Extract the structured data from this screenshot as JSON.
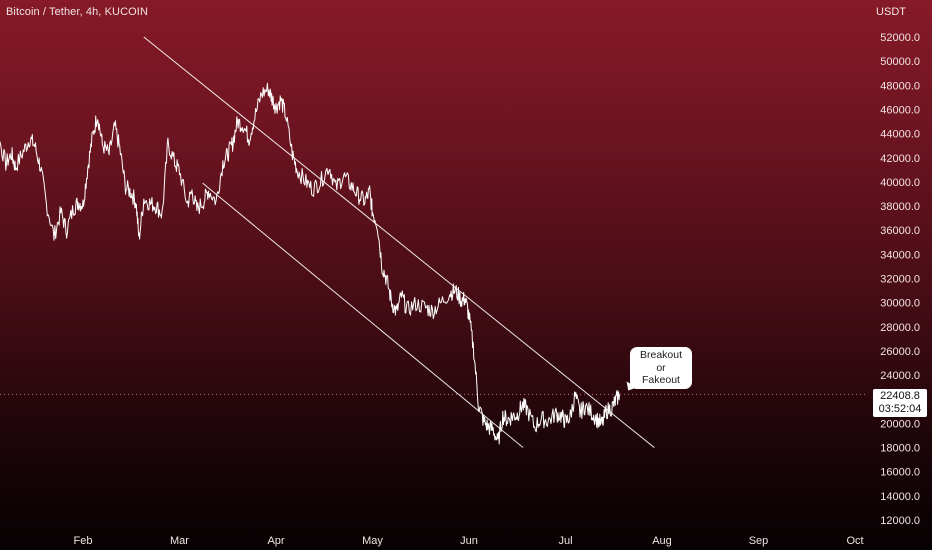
{
  "header": {
    "symbol": "Bitcoin / Tether, 4h, KUCOIN",
    "currency": "USDT"
  },
  "price_tag": {
    "last_price": "22408.8",
    "countdown": "03:52:04"
  },
  "annotation": {
    "line1": "Breakout",
    "line2": "or",
    "line3": "Fakeout"
  },
  "colors": {
    "background_top": "#861a27",
    "background_bottom": "#060102",
    "price_line": "#ffffff",
    "tag_bg": "#ffffff"
  },
  "chart_data": {
    "type": "line",
    "title": "",
    "xlabel": "",
    "ylabel": "",
    "ylim": [
      11000,
      55000
    ],
    "x_ticks": [
      {
        "label": "Feb",
        "pos": 1
      },
      {
        "label": "Mar",
        "pos": 2
      },
      {
        "label": "Apr",
        "pos": 3
      },
      {
        "label": "May",
        "pos": 4
      },
      {
        "label": "Jun",
        "pos": 5
      },
      {
        "label": "Jul",
        "pos": 6
      },
      {
        "label": "Aug",
        "pos": 7
      },
      {
        "label": "Sep",
        "pos": 8
      },
      {
        "label": "Oct",
        "pos": 9
      }
    ],
    "y_ticks": [
      "52000.0",
      "50000.0",
      "48000.0",
      "46000.0",
      "44000.0",
      "42000.0",
      "40000.0",
      "38000.0",
      "36000.0",
      "34000.0",
      "32000.0",
      "30000.0",
      "28000.0",
      "26000.0",
      "24000.0",
      "20000.0",
      "18000.0",
      "16000.0",
      "14000.0",
      "12000.0"
    ],
    "y_tick_values": [
      52000,
      50000,
      48000,
      46000,
      44000,
      42000,
      40000,
      38000,
      36000,
      34000,
      32000,
      30000,
      28000,
      26000,
      24000,
      20000,
      18000,
      16000,
      14000,
      12000
    ],
    "last_price": 22408.8,
    "series": [
      {
        "x": [
          0.0,
          0.05,
          0.12,
          0.2,
          0.26,
          0.3,
          0.38,
          0.45,
          0.5,
          0.56,
          0.62,
          0.7,
          0.77,
          0.83,
          0.9,
          0.95,
          1.0,
          1.05,
          1.1,
          1.15,
          1.2,
          1.27,
          1.33,
          1.38,
          1.44,
          1.5,
          1.55,
          1.58,
          1.63,
          1.7,
          1.76,
          1.82,
          1.88,
          1.95,
          2.0,
          2.08,
          2.13,
          2.18,
          2.25,
          2.3,
          2.38,
          2.45,
          2.5,
          2.55,
          2.6,
          2.66,
          2.72,
          2.78,
          2.85,
          2.92,
          2.96,
          3.0,
          3.05,
          3.1,
          3.17,
          3.22,
          3.3,
          3.38,
          3.46,
          3.55,
          3.62,
          3.7,
          3.78,
          3.85,
          3.92,
          3.97,
          4.0,
          4.05,
          4.1,
          4.15,
          4.2,
          4.25,
          4.3,
          4.36,
          4.45,
          4.55,
          4.62,
          4.7,
          4.8,
          4.86,
          4.92,
          4.96,
          5.0,
          5.05,
          5.1,
          5.15,
          5.2,
          5.25,
          5.3,
          5.35,
          5.4,
          5.45,
          5.5,
          5.55,
          5.6,
          5.68,
          5.75,
          5.82,
          5.9,
          5.96,
          6.0,
          6.05,
          6.1,
          6.15,
          6.2,
          6.27,
          6.33,
          6.38,
          6.42,
          6.48,
          6.52,
          6.56
        ],
        "y": [
          41800,
          42800,
          43800,
          41500,
          42300,
          41200,
          42500,
          43600,
          43000,
          41200,
          38200,
          35500,
          37500,
          36000,
          37800,
          38300,
          38100,
          41200,
          43800,
          45600,
          43100,
          42300,
          44600,
          42800,
          39600,
          39100,
          38300,
          35300,
          38600,
          38200,
          38000,
          37300,
          43200,
          41600,
          40900,
          38200,
          39200,
          37700,
          38400,
          39300,
          38400,
          41600,
          42300,
          43200,
          45000,
          44700,
          43600,
          45400,
          47300,
          47700,
          46900,
          46200,
          46800,
          45600,
          42300,
          41000,
          40100,
          39400,
          40000,
          41300,
          39500,
          40500,
          39700,
          38900,
          38400,
          39200,
          37500,
          36500,
          33000,
          31800,
          30000,
          29200,
          30600,
          29400,
          29900,
          29600,
          29300,
          29900,
          30800,
          31000,
          30200,
          30300,
          28900,
          26000,
          21500,
          20200,
          19700,
          19500,
          18400,
          20600,
          20300,
          20600,
          20700,
          21500,
          21200,
          19700,
          20400,
          20200,
          20800,
          20600,
          20100,
          20600,
          22300,
          20900,
          21400,
          20900,
          20300,
          19900,
          21000,
          21300,
          21900,
          22409
        ]
      }
    ],
    "trend_channel": {
      "upper": [
        [
          1.63,
          52000
        ],
        [
          6.92,
          18000
        ]
      ],
      "lower": [
        [
          2.24,
          39900
        ],
        [
          5.56,
          18000
        ]
      ]
    }
  }
}
